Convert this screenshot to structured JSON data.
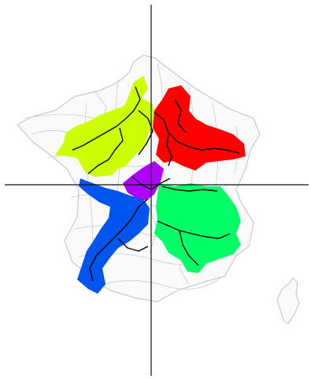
{
  "map": {
    "region_colors": {
      "north_west": "#ccff00",
      "north_east": "#ff0000",
      "south_west": "#0055ee",
      "south_east": "#00ff66",
      "center": "#b000ff"
    },
    "line_colors": {
      "axes": "#111111",
      "boundaries": "#c8c8c8",
      "paths": "#000000"
    },
    "icons": [
      "crosshair-axes",
      "region-paths"
    ]
  }
}
